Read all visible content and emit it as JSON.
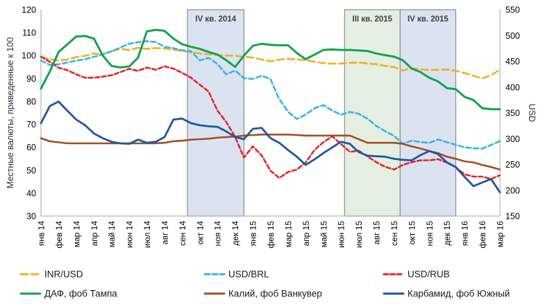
{
  "background": "#ffffff",
  "chart_data": {
    "type": "line",
    "points_per_month": 2,
    "x_categories": [
      "янв 14",
      "фев 14",
      "мар 14",
      "апр 14",
      "май 14",
      "июн 14",
      "июл 14",
      "авг 14",
      "сен 14",
      "окт 14",
      "ноя 14",
      "дек 14",
      "янв 15",
      "фев 15",
      "мар 15",
      "апр 15",
      "май 15",
      "июн 15",
      "июл 15",
      "авг 15",
      "сен 15",
      "окт 15",
      "ноя 15",
      "дек 15",
      "янв 16",
      "фев 16",
      "мар 16"
    ],
    "axes": {
      "left": {
        "title": "Местные валюты, приведенные к 100",
        "min": 30,
        "max": 120,
        "step": 10
      },
      "right": {
        "title": "USD",
        "min": 150,
        "max": 550,
        "step": 50
      }
    },
    "band_border": "#8c8c8c",
    "band_label_color": "#3f3f3f",
    "axis_line_color": "#a6a6a6",
    "bands": [
      {
        "label": "IV кв. 2014",
        "from_month": 8.3,
        "to_month": 11.5,
        "fill": "#dbe3f1"
      },
      {
        "label": "III кв. 2015",
        "from_month": 17.2,
        "to_month": 20.35,
        "fill": "#e4efe2"
      },
      {
        "label": "IV кв. 2015",
        "from_month": 20.35,
        "to_month": 23.5,
        "fill": "#dbe3f1"
      }
    ],
    "series": [
      {
        "name": "INR/USD",
        "axis": "left",
        "color": "#f0b01e",
        "dash": "10 5",
        "width": 2.6,
        "values": [
          99.3,
          98.5,
          97.8,
          98.3,
          99.3,
          99.9,
          100.9,
          100.6,
          101.9,
          102.9,
          102.4,
          103.4,
          102.9,
          103.3,
          103.1,
          102.5,
          102,
          101.4,
          100.9,
          100.5,
          100.2,
          100,
          99.9,
          99.5,
          99.1,
          98.3,
          97.5,
          98.2,
          98.6,
          98.3,
          98,
          97.3,
          96.7,
          96.5,
          96.5,
          96.8,
          97,
          96.6,
          96.2,
          95.5,
          95,
          93.5,
          94.4,
          94,
          93.7,
          93.8,
          93.9,
          93.4,
          92.4,
          91.2,
          90,
          91.5,
          93.8
        ]
      },
      {
        "name": "USD/BRL",
        "axis": "left",
        "color": "#36b3e6",
        "dash": "7 4",
        "width": 2.6,
        "values": [
          97.9,
          95.9,
          96.2,
          97,
          97.8,
          98.4,
          99.5,
          100.5,
          101.9,
          103.5,
          105.2,
          105.8,
          106.3,
          105.9,
          103.8,
          103.2,
          102.3,
          101.9,
          97.9,
          99,
          96.3,
          91.8,
          93.5,
          90.1,
          89.8,
          91.2,
          89.8,
          81,
          75.5,
          72.3,
          74.3,
          77,
          78.4,
          76,
          74.2,
          75.4,
          74.6,
          72.5,
          69.3,
          67,
          65,
          61.5,
          62.9,
          62.3,
          61.9,
          63.4,
          62.2,
          61.1,
          60,
          59.6,
          59.4,
          61,
          62.7
        ]
      },
      {
        "name": "USD/RUB",
        "axis": "left",
        "color": "#e82227",
        "dash": "6 3.5",
        "width": 2.6,
        "values": [
          99.5,
          97.3,
          94.7,
          93.6,
          91.8,
          90.3,
          90.3,
          90.8,
          91.4,
          92.8,
          94.2,
          93.3,
          94.8,
          93.8,
          95.3,
          94.3,
          92.5,
          90.3,
          87.3,
          84.3,
          76,
          71,
          64.5,
          55.5,
          60.4,
          56.5,
          49.8,
          46.6,
          49.2,
          50.3,
          53.4,
          58.9,
          62.2,
          64.8,
          61.4,
          58,
          58.5,
          56,
          53.5,
          51.5,
          50.3,
          52.3,
          53.5,
          54.3,
          54.3,
          54.8,
          53.3,
          51.3,
          48.2,
          47.2,
          47.2,
          46.2,
          47.8
        ]
      },
      {
        "name": "ДАФ, фоб Тампа",
        "axis": "right",
        "color": "#14a24c",
        "dash": null,
        "width": 3,
        "values": [
          397,
          430,
          468,
          483,
          498,
          499,
          494,
          461,
          441,
          438,
          440,
          457,
          508,
          511,
          509,
          494,
          483,
          478,
          474,
          468,
          463,
          452,
          439,
          461,
          480,
          484,
          482,
          481,
          481,
          466,
          454,
          463,
          472,
          473,
          472,
          472,
          471,
          470,
          465,
          462,
          459,
          452,
          436,
          429,
          418,
          411,
          398,
          396,
          381,
          375,
          359,
          357,
          357
        ]
      },
      {
        "name": "Калий, фоб Ванкувер",
        "axis": "right",
        "color": "#a14d20",
        "dash": null,
        "width": 2.6,
        "values": [
          301,
          295,
          293,
          291,
          291,
          291,
          291,
          291,
          291,
          291,
          291,
          291,
          291,
          291,
          292,
          295,
          296,
          298,
          299,
          300,
          302,
          303,
          304,
          306,
          307,
          308,
          308,
          308,
          308,
          307,
          306,
          306,
          306,
          306,
          306,
          306,
          299,
          292,
          292,
          292,
          292,
          290,
          285,
          281,
          276,
          272,
          265,
          261,
          256,
          254,
          249,
          245,
          240
        ]
      },
      {
        "name": "Карбамид, фоб Южный",
        "axis": "right",
        "color": "#1e56a0",
        "dash": null,
        "width": 2.8,
        "values": [
          330,
          363,
          372,
          354,
          337,
          326,
          310,
          301,
          294,
          291,
          290,
          298,
          292,
          294,
          303,
          337,
          339,
          330,
          326,
          324,
          323,
          314,
          303,
          299,
          319,
          321,
          301,
          292,
          278,
          265,
          249,
          260,
          272,
          283,
          294,
          290,
          274,
          267,
          266,
          265,
          261,
          259,
          258,
          268,
          276,
          270,
          254,
          245,
          226,
          208,
          215,
          222,
          196
        ]
      }
    ],
    "legend_position": "bottom"
  }
}
